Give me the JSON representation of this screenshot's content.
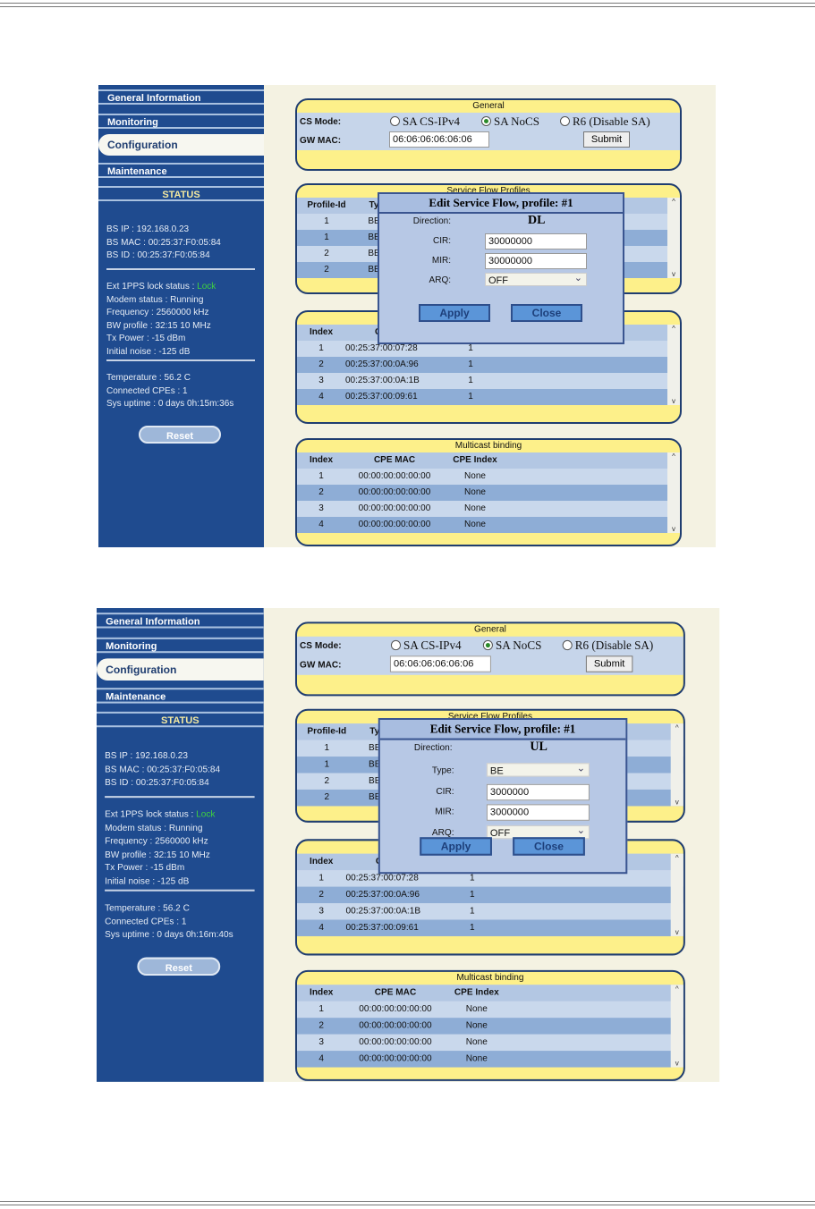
{
  "panels": [
    {
      "nav": [
        "General Information",
        "Monitoring",
        "Configuration",
        "Maintenance"
      ],
      "active_nav": 2,
      "status_title": "STATUS",
      "status_groups": [
        [
          [
            "BS IP : ",
            "192.168.0.23"
          ],
          [
            "BS MAC : ",
            "00:25:37:F0:05:84"
          ],
          [
            "BS ID : ",
            "00:25:37:F0:05:84"
          ]
        ],
        [
          [
            "Ext 1PPS lock status : ",
            "Lock"
          ],
          [
            "Modem status : ",
            "Running"
          ],
          [
            "Frequency : ",
            "2560000 kHz"
          ],
          [
            "BW profile : ",
            "32:15 10 MHz"
          ],
          [
            "Tx Power : ",
            "-15 dBm"
          ],
          [
            "Initial noise : ",
            "-125 dB"
          ]
        ],
        [
          [
            "Temperature : ",
            "56.2 C"
          ],
          [
            "Connected CPEs : ",
            "1"
          ],
          [
            "Sys uptime : ",
            "0 days 0h:15m:36s"
          ]
        ]
      ],
      "reset": "Reset",
      "general": {
        "title": "General",
        "cs_mode_label": "CS Mode:",
        "options": [
          "SA CS-IPv4",
          "SA NoCS",
          "R6 (Disable SA)"
        ],
        "selected": 1,
        "gw_mac_label": "GW MAC:",
        "gw_mac": "06:06:06:06:06:06",
        "submit": "Submit"
      },
      "sfp": {
        "title": "Service Flow Profiles",
        "headers": [
          "Profile-Id",
          "Ty"
        ],
        "rows": [
          [
            "1",
            "BE"
          ],
          [
            "1",
            "BE"
          ],
          [
            "2",
            "BE"
          ],
          [
            "2",
            "BE"
          ]
        ]
      },
      "cpe": {
        "title": "",
        "headers": [
          "Index",
          "CP",
          ""
        ],
        "rows": [
          [
            "1",
            "00:25:37:00:07:28",
            "1"
          ],
          [
            "2",
            "00:25:37:00:0A:96",
            "1"
          ],
          [
            "3",
            "00:25:37:00:0A:1B",
            "1"
          ],
          [
            "4",
            "00:25:37:00:09:61",
            "1"
          ]
        ]
      },
      "mc": {
        "title": "Multicast binding",
        "headers": [
          "Index",
          "CPE MAC",
          "CPE Index"
        ],
        "rows": [
          [
            "1",
            "00:00:00:00:00:00",
            "None"
          ],
          [
            "2",
            "00:00:00:00:00:00",
            "None"
          ],
          [
            "3",
            "00:00:00:00:00:00",
            "None"
          ],
          [
            "4",
            "00:00:00:00:00:00",
            "None"
          ]
        ]
      },
      "dialog": {
        "title": "Edit Service Flow, profile: #1",
        "direction_label": "Direction:",
        "direction": "DL",
        "fields": [
          [
            "CIR:",
            "30000000",
            "input"
          ],
          [
            "MIR:",
            "30000000",
            "input"
          ],
          [
            "ARQ:",
            "OFF",
            "select"
          ]
        ],
        "apply": "Apply",
        "close": "Close"
      }
    },
    {
      "nav": [
        "General Information",
        "Monitoring",
        "Configuration",
        "Maintenance"
      ],
      "active_nav": 2,
      "status_title": "STATUS",
      "status_groups": [
        [
          [
            "BS IP : ",
            "192.168.0.23"
          ],
          [
            "BS MAC : ",
            "00:25:37:F0:05:84"
          ],
          [
            "BS ID : ",
            "00:25:37:F0:05:84"
          ]
        ],
        [
          [
            "Ext 1PPS lock status : ",
            "Lock"
          ],
          [
            "Modem status : ",
            "Running"
          ],
          [
            "Frequency : ",
            "2560000 kHz"
          ],
          [
            "BW profile : ",
            "32:15 10 MHz"
          ],
          [
            "Tx Power : ",
            "-15 dBm"
          ],
          [
            "Initial noise : ",
            "-125 dB"
          ]
        ],
        [
          [
            "Temperature : ",
            "56.2 C"
          ],
          [
            "Connected CPEs : ",
            "1"
          ],
          [
            "Sys uptime : ",
            "0 days 0h:16m:40s"
          ]
        ]
      ],
      "reset": "Reset",
      "general": {
        "title": "General",
        "cs_mode_label": "CS Mode:",
        "options": [
          "SA CS-IPv4",
          "SA NoCS",
          "R6 (Disable SA)"
        ],
        "selected": 1,
        "gw_mac_label": "GW MAC:",
        "gw_mac": "06:06:06:06:06:06",
        "submit": "Submit"
      },
      "sfp": {
        "title": "Service Flow Profiles",
        "headers": [
          "Profile-Id",
          "Ty"
        ],
        "rows": [
          [
            "1",
            "BE"
          ],
          [
            "1",
            "BE"
          ],
          [
            "2",
            "BE"
          ],
          [
            "2",
            "BE"
          ]
        ]
      },
      "cpe": {
        "title": "",
        "headers": [
          "Index",
          "CP",
          ""
        ],
        "rows": [
          [
            "1",
            "00:25:37:00:07:28",
            "1"
          ],
          [
            "2",
            "00:25:37:00:0A:96",
            "1"
          ],
          [
            "3",
            "00:25:37:00:0A:1B",
            "1"
          ],
          [
            "4",
            "00:25:37:00:09:61",
            "1"
          ]
        ]
      },
      "mc": {
        "title": "Multicast binding",
        "headers": [
          "Index",
          "CPE MAC",
          "CPE Index"
        ],
        "rows": [
          [
            "1",
            "00:00:00:00:00:00",
            "None"
          ],
          [
            "2",
            "00:00:00:00:00:00",
            "None"
          ],
          [
            "3",
            "00:00:00:00:00:00",
            "None"
          ],
          [
            "4",
            "00:00:00:00:00:00",
            "None"
          ]
        ]
      },
      "dialog": {
        "title": "Edit Service Flow, profile: #1",
        "direction_label": "Direction:",
        "direction": "UL",
        "fields": [
          [
            "Type:",
            "BE",
            "select"
          ],
          [
            "CIR:",
            "3000000",
            "input"
          ],
          [
            "MIR:",
            "3000000",
            "input"
          ],
          [
            "ARQ:",
            "OFF",
            "select"
          ]
        ],
        "apply": "Apply",
        "close": "Close"
      }
    }
  ],
  "colors": {
    "sidebar": "#1f4b8f",
    "box": "#fdf08a",
    "lock": "#3fd13f"
  }
}
